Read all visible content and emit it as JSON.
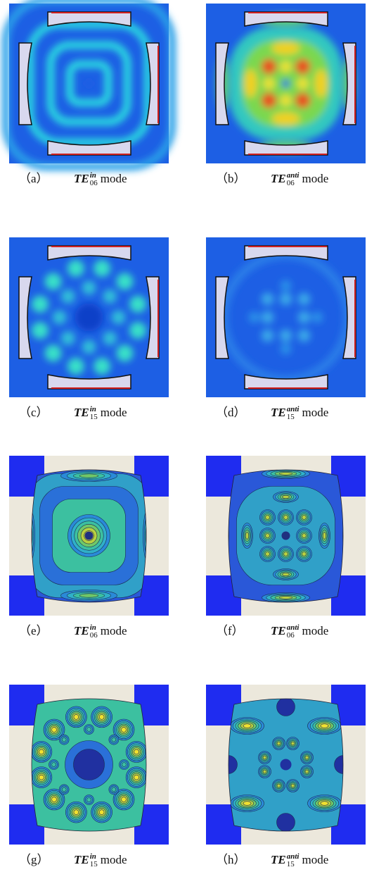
{
  "figure": {
    "panels": [
      {
        "label": "（a）",
        "symbol": "TE",
        "subscript": "06",
        "superscript": "in",
        "suffix": "mode"
      },
      {
        "label": "（b）",
        "symbol": "TE",
        "subscript": "06",
        "superscript": "anti",
        "suffix": "mode"
      },
      {
        "label": "（c）",
        "symbol": "TE",
        "subscript": "15",
        "superscript": "in",
        "suffix": "mode"
      },
      {
        "label": "（d）",
        "symbol": "TE",
        "subscript": "15",
        "superscript": "anti",
        "suffix": "mode"
      },
      {
        "label": "（e）",
        "symbol": "TE",
        "subscript": "06",
        "superscript": "in",
        "suffix": "mode"
      },
      {
        "label": "（f）",
        "symbol": "TE",
        "subscript": "06",
        "superscript": "anti",
        "suffix": "mode"
      },
      {
        "label": "（g）",
        "symbol": "TE",
        "subscript": "15",
        "superscript": "in",
        "suffix": "mode"
      },
      {
        "label": "（h）",
        "symbol": "TE",
        "subscript": "15",
        "superscript": "anti",
        "suffix": "mode"
      }
    ]
  }
}
